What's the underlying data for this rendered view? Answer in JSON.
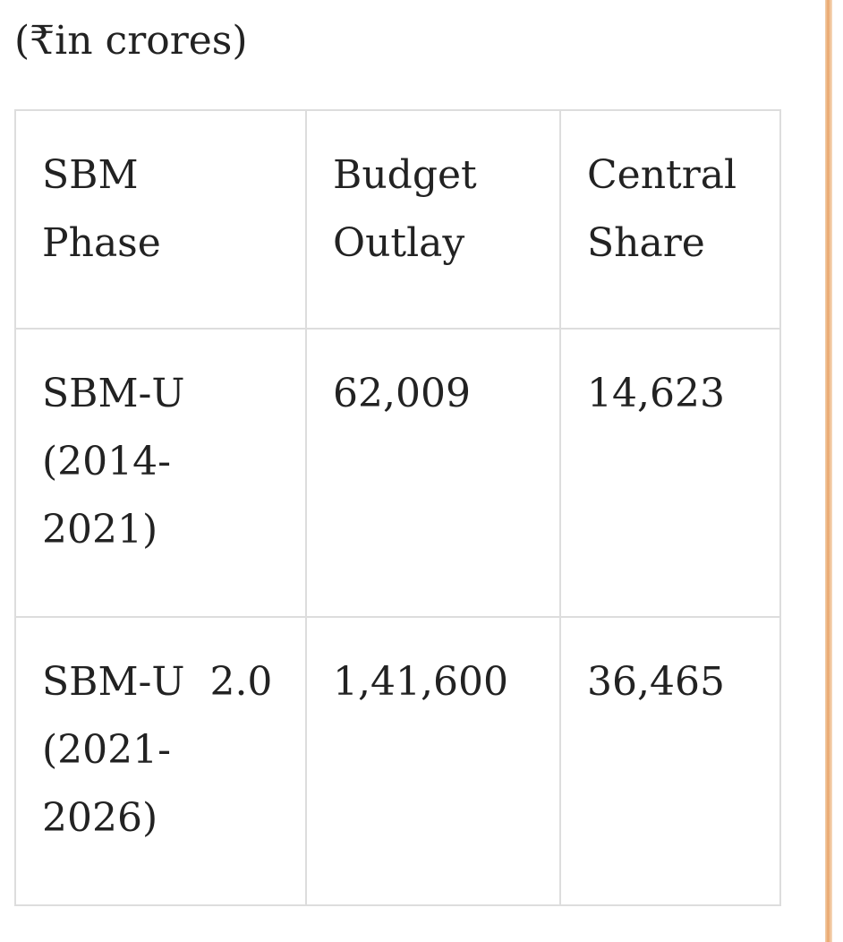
{
  "caption": "(₹in crores)",
  "table": {
    "header": [
      "SBM\nPhase",
      "Budget\nOutlay",
      "Central\nShare"
    ],
    "rows": [
      [
        "SBM-U\n(2014-\n2021)",
        "62,009",
        "14,623"
      ],
      [
        "SBM-U  2.0\n(2021-\n2026)",
        "1,41,600",
        "36,465"
      ]
    ]
  }
}
